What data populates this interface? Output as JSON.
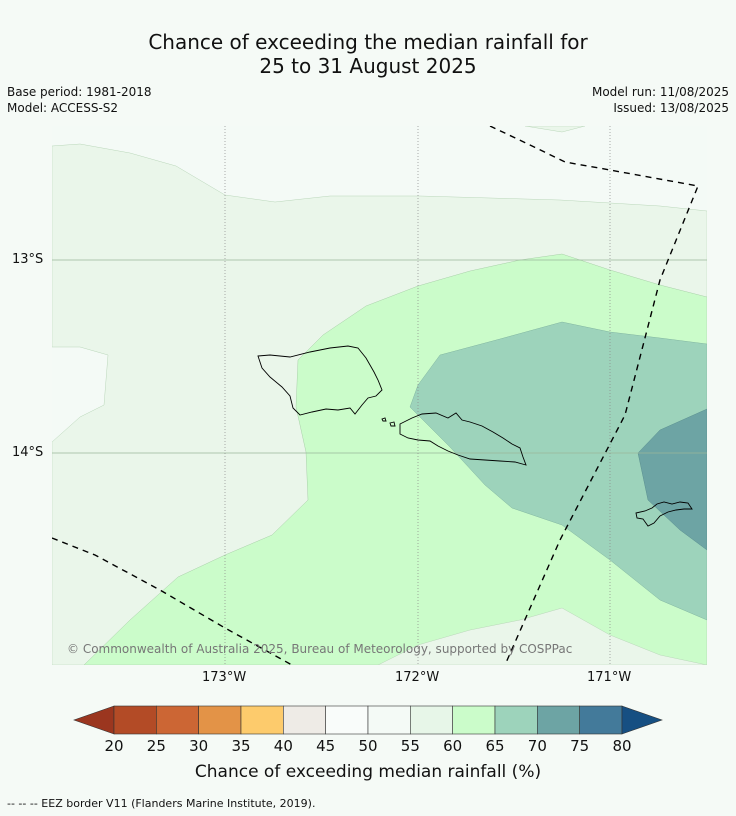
{
  "title_line1": "Chance of exceeding the median rainfall for",
  "title_line2": "25 to 31 August 2025",
  "base_period": "Base period: 1981-2018",
  "model": "Model: ACCESS-S2",
  "model_run": "Model run: 11/08/2025",
  "issued": "Issued: 13/08/2025",
  "lat_labels": [
    "13°S",
    "14°S"
  ],
  "lon_labels": [
    "173°W",
    "172°W",
    "171°W"
  ],
  "copyright": "© Commonwealth of Australia 2025, Bureau of Meteorology, supported by COSPPac",
  "colorbar": {
    "ticks": [
      "20",
      "25",
      "30",
      "35",
      "40",
      "45",
      "50",
      "55",
      "60",
      "65",
      "70",
      "75",
      "80"
    ],
    "colors": [
      "#9b361f",
      "#b34b26",
      "#cc6634",
      "#e39347",
      "#fdcb6c",
      "#eeebe6",
      "#f9fcfa",
      "#f4faf6",
      "#e7f6e8",
      "#cbfcca",
      "#9dd3bb",
      "#6da4a4",
      "#437a9a",
      "#164f82"
    ],
    "label": "Chance of exceeding median rainfall (%)"
  },
  "footer": "-- -- -- EEZ border V11 (Flanders Marine Institute, 2019).",
  "region_colors": {
    "c50_55": "#f4faf6",
    "c55_60": "#eaf6ea",
    "c60_65": "#cbfcca",
    "c65_70": "#9dd3bb",
    "c70_75": "#6da4a4"
  }
}
